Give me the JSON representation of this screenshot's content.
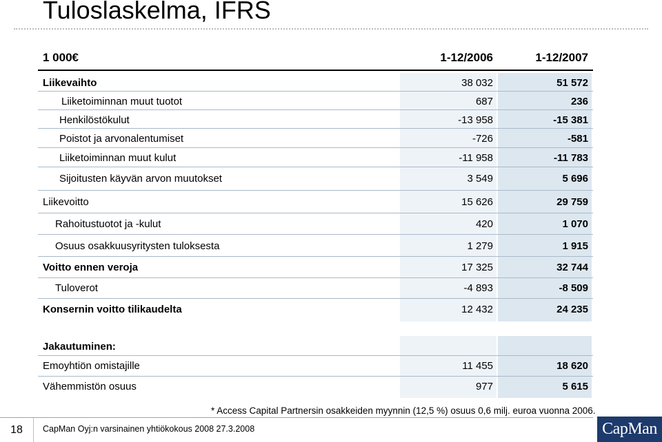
{
  "title": "Tuloslaskelma, IFRS",
  "header": {
    "unit": "1 000€",
    "col1": "1-12/2006",
    "col2": "1-12/2007"
  },
  "rows": [
    {
      "label": "Liikevaihto",
      "v1": "38 032",
      "v2": "51 572",
      "bold": true
    },
    {
      "label": "Liiketoiminnan muut tuotot",
      "v1": "687",
      "v2": "236",
      "bold": false
    },
    {
      "label": "Henkilöstökulut",
      "v1": "-13 958",
      "v2": "-15 381",
      "bold": false
    },
    {
      "label": "Poistot ja arvonalentumiset",
      "v1": "-726",
      "v2": "-581",
      "bold": false
    },
    {
      "label": "Liiketoiminnan muut kulut",
      "v1": "-11 958",
      "v2": "-11 783",
      "bold": false
    },
    {
      "label": "Sijoitusten käyvän arvon muutokset",
      "v1": "3 549",
      "v2": "5 696",
      "bold": false
    },
    {
      "label": "Liikevoitto",
      "v1": "15 626",
      "v2": "29 759",
      "bold": true
    },
    {
      "label": "Rahoitustuotot ja -kulut",
      "v1": "420",
      "v2": "1 070",
      "bold": false
    },
    {
      "label": "Osuus osakkuusyritysten tuloksesta",
      "v1": "1 279",
      "v2": "1 915",
      "bold": false
    },
    {
      "label": "Voitto ennen veroja",
      "v1": "17 325",
      "v2": "32 744",
      "bold": true
    },
    {
      "label": "Tuloverot",
      "v1": "-4 893",
      "v2": "-8 509",
      "bold": false
    },
    {
      "label": "Konsernin voitto tilikaudelta",
      "v1": "12 432",
      "v2": "24 235",
      "bold": true
    }
  ],
  "distribution": {
    "heading": "Jakautuminen:",
    "rows": [
      {
        "label": "Emoyhtiön omistajille",
        "v1": "11 455",
        "v2": "18 620"
      },
      {
        "label": "Vähemmistön osuus",
        "v1": "977",
        "v2": "5 615"
      }
    ]
  },
  "footnote": "* Access Capital Partnersin osakkeiden myynnin (12,5 %)  osuus 0,6 milj. euroa vuonna 2006.",
  "footer": {
    "page_number": "18",
    "text": "CapMan Oyj:n varsinainen yhtiökokous 2008   27.3.2008",
    "logo": "CapMan"
  },
  "colors": {
    "col1_bg": "#eef3f8",
    "col2_bg": "#dde7f0",
    "logo_bg": "#1d3a6c"
  }
}
